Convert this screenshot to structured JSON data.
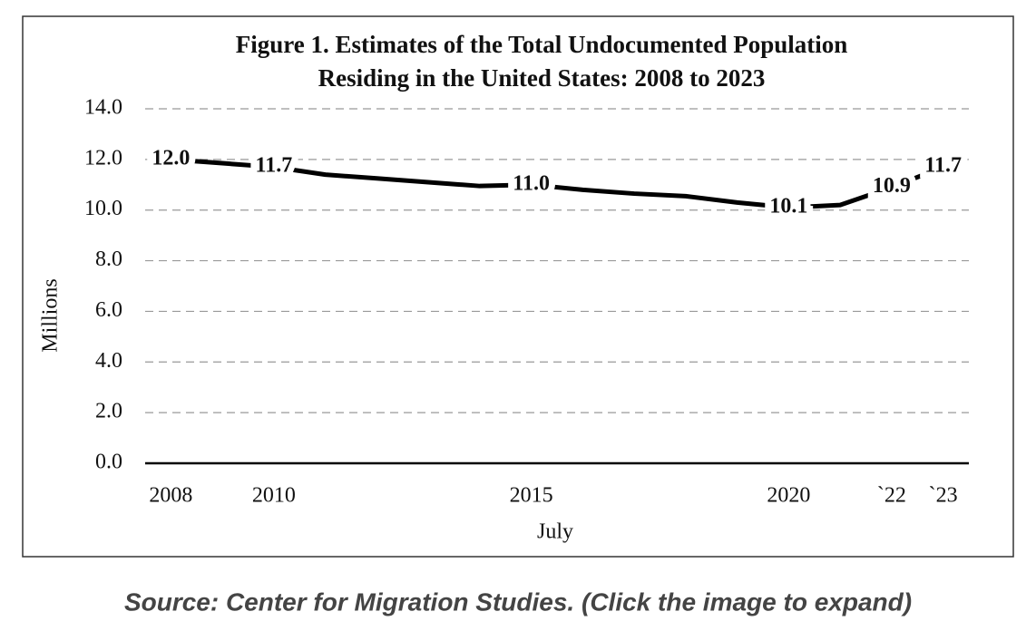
{
  "chart_data": {
    "type": "line",
    "title": [
      "Figure 1. Estimates of the Total Undocumented  Population",
      "Residing in the United States: 2008 to 2023"
    ],
    "x_label": "July",
    "y_label": "Millions",
    "x": [
      2008,
      2009,
      2010,
      2011,
      2012,
      2013,
      2014,
      2015,
      2016,
      2017,
      2018,
      2019,
      2020,
      2021,
      2022,
      2023
    ],
    "series": [
      {
        "color": "#000000",
        "values": [
          12.0,
          11.85,
          11.7,
          11.4,
          11.25,
          11.1,
          10.95,
          11.0,
          10.8,
          10.65,
          10.55,
          10.3,
          10.1,
          10.2,
          10.9,
          11.7
        ],
        "value_labels": [
          "12.0",
          null,
          "11.7",
          null,
          null,
          null,
          null,
          "11.0",
          null,
          null,
          null,
          null,
          "10.1",
          null,
          "10.9",
          "11.7"
        ]
      }
    ],
    "xlim": [
      2007.5,
      2023.5
    ],
    "xticks": [
      2008,
      2010,
      2015,
      2020,
      {
        "value": 2022,
        "label": "`22"
      },
      {
        "value": 2023,
        "label": "`23"
      }
    ],
    "ylim": [
      0,
      14
    ],
    "yticks": [
      {
        "value": 0,
        "label": "0.0"
      },
      {
        "value": 2,
        "label": "2.0"
      },
      {
        "value": 4,
        "label": "4.0"
      },
      {
        "value": 6,
        "label": "6.0"
      },
      {
        "value": 8,
        "label": "8.0"
      },
      {
        "value": 10,
        "label": "10.0"
      },
      {
        "value": 12,
        "label": "12.0"
      },
      {
        "value": 14,
        "label": "14.0"
      }
    ],
    "grid": true
  },
  "caption": "Source: Center for Migration Studies. (Click the image to expand)"
}
